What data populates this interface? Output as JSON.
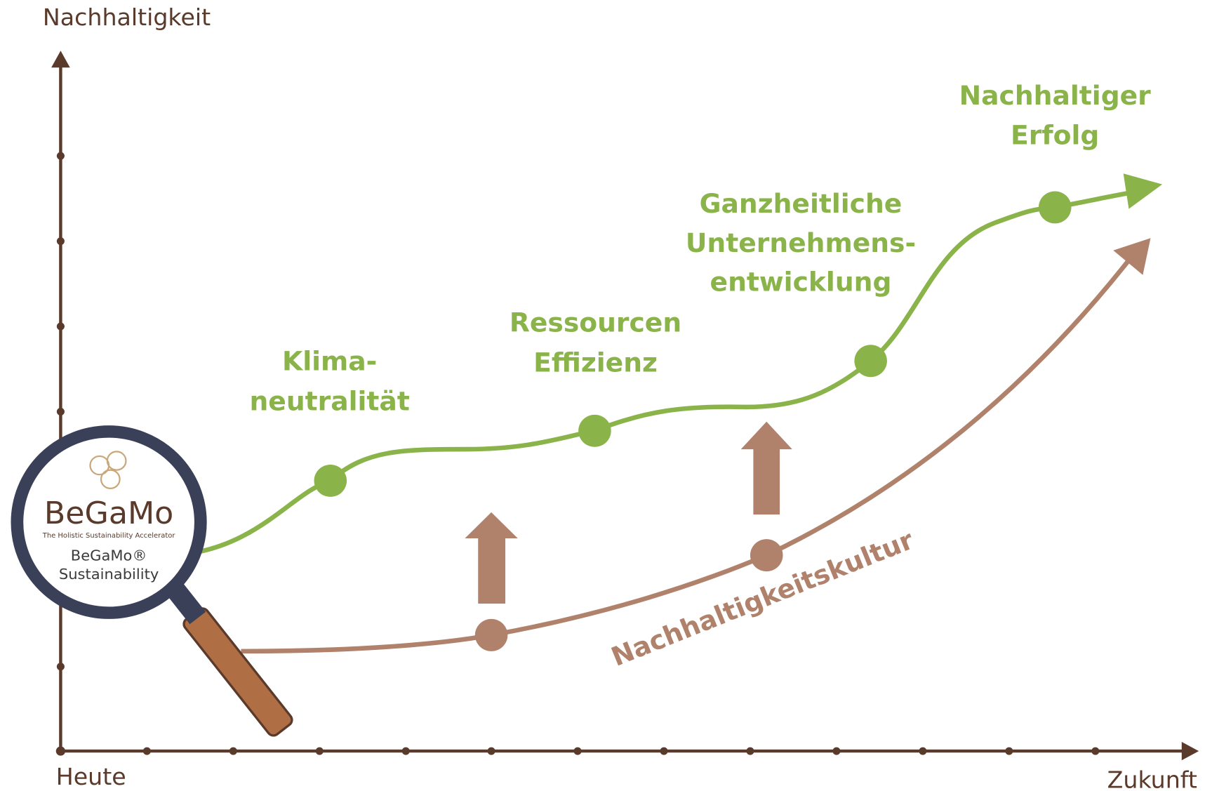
{
  "axes": {
    "y_label": "Nachhaltigkeit",
    "x_start": "Heute",
    "x_end": "Zukunft"
  },
  "milestones": [
    {
      "lines": [
        "Klima-",
        "neutralität"
      ]
    },
    {
      "lines": [
        "Ressourcen",
        "Effizienz"
      ]
    },
    {
      "lines": [
        "Ganzheitliche",
        "Unternehmens-",
        "entwicklung"
      ]
    },
    {
      "lines": [
        "Nachhaltiger",
        "Erfolg"
      ]
    }
  ],
  "culture_curve": {
    "label": "Nachhaltigkeitskultur"
  },
  "logo": {
    "name": "BeGaMo",
    "tagline": "The Holistic Sustainability Accelerator",
    "product": "BeGaMo®",
    "product_line2": "Sustainability"
  }
}
